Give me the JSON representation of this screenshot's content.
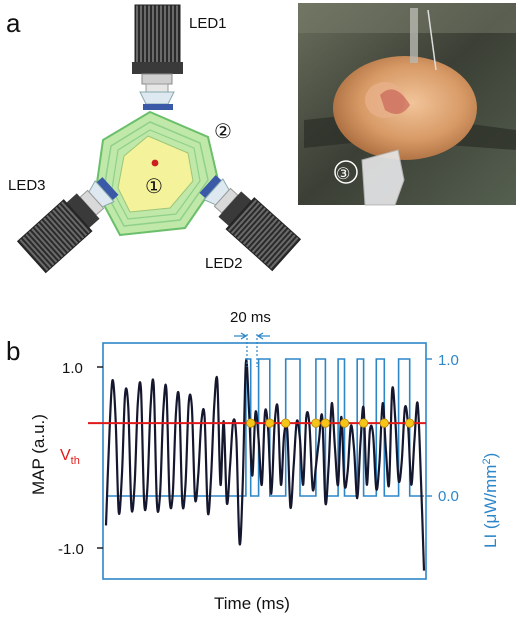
{
  "panel_a": {
    "label": "a",
    "leds": [
      "LED1",
      "LED2",
      "LED3"
    ],
    "markers": [
      "①",
      "②",
      "③"
    ]
  },
  "panel_b": {
    "label": "b",
    "annotation": "20 ms",
    "threshold_label": "V",
    "threshold_sub": "th"
  },
  "chart_data": {
    "type": "line",
    "xlabel": "Time (ms)",
    "ylabel_left": "MAP (a.u.)",
    "ylabel_right": "LI  (μW/mm²)",
    "ylabel_right_base": "LI  (μW/mm",
    "ylabel_right_sup": "2",
    "ylabel_right_close": ")",
    "yticks_left": [
      "1.0",
      "-1.0"
    ],
    "yticks_right": [
      "1.0",
      "0.0"
    ],
    "ylim_left": [
      -1.25,
      1.25
    ],
    "threshold": 0.38,
    "colors": {
      "map": "#15172e",
      "li": "#2d86c8",
      "threshold": "#e01a1a",
      "crossing": "#f5c518"
    },
    "series": [
      {
        "key": "MAP",
        "x": [
          0,
          0.01,
          0.02,
          0.03,
          0.04,
          0.05,
          0.06,
          0.07,
          0.08,
          0.09,
          0.1,
          0.11,
          0.12,
          0.13,
          0.14,
          0.15,
          0.16,
          0.17,
          0.18,
          0.19,
          0.2,
          0.21,
          0.22,
          0.23,
          0.24,
          0.25,
          0.26,
          0.27,
          0.28,
          0.29,
          0.3,
          0.31,
          0.32,
          0.33,
          0.34,
          0.35,
          0.36,
          0.37,
          0.38,
          0.39,
          0.4,
          0.41,
          0.42,
          0.43,
          0.44,
          0.45,
          0.46,
          0.47,
          0.48,
          0.49,
          0.5,
          0.51,
          0.52,
          0.53,
          0.54,
          0.55,
          0.56,
          0.57,
          0.58,
          0.59,
          0.6,
          0.61,
          0.62,
          0.63,
          0.64,
          0.65,
          0.66,
          0.67,
          0.68,
          0.69,
          0.7,
          0.71,
          0.72,
          0.73,
          0.74,
          0.75,
          0.76,
          0.77,
          0.78,
          0.79,
          0.8,
          0.81,
          0.82,
          0.83,
          0.84,
          0.85,
          0.86,
          0.87,
          0.88,
          0.89,
          0.9,
          0.91,
          0.92,
          0.93,
          0.94,
          0.95,
          0.96,
          0.97,
          0.98,
          0.99,
          1.0
        ],
        "values": [
          -0.75,
          0.2,
          0.85,
          0.45,
          -0.6,
          -0.2,
          0.7,
          0.55,
          -0.55,
          -0.3,
          0.6,
          0.75,
          -0.5,
          -0.35,
          0.55,
          0.8,
          -0.5,
          -0.4,
          0.5,
          0.75,
          -0.45,
          -0.4,
          0.5,
          0.65,
          -0.5,
          -0.3,
          0.6,
          0.55,
          -0.45,
          -0.2,
          0.4,
          0.45,
          -0.6,
          -0.25,
          0.55,
          0.85,
          -0.3,
          0.4,
          -0.5,
          -0.1,
          0.4,
          0.2,
          -0.95,
          -0.3,
          1.05,
          0.5,
          -0.2,
          0.5,
          0.2,
          -0.3,
          0.5,
          0.3,
          -0.4,
          0.35,
          0.55,
          -0.3,
          0.25,
          0.3,
          -0.55,
          -0.1,
          0.4,
          0.2,
          -0.3,
          0.45,
          0.35,
          -0.35,
          -0.1,
          0.2,
          0.45,
          -0.5,
          -0.1,
          0.6,
          0.1,
          -0.3,
          0.45,
          -0.3,
          -0.15,
          0.35,
          0.1,
          -0.45,
          0.15,
          0.55,
          -0.3,
          0.3,
          0.25,
          -0.35,
          -0.05,
          0.6,
          0.1,
          -0.3,
          0.75,
          0.4,
          -0.25,
          -0.05,
          0.55,
          0.35,
          -0.3,
          0.2,
          0.6,
          -0.2,
          -1.25
        ]
      },
      {
        "key": "LI",
        "x": [
          0,
          0.44,
          0.44,
          0.455,
          0.455,
          0.48,
          0.48,
          0.515,
          0.515,
          0.565,
          0.565,
          0.61,
          0.61,
          0.66,
          0.66,
          0.69,
          0.69,
          0.73,
          0.73,
          0.75,
          0.75,
          0.79,
          0.79,
          0.81,
          0.81,
          0.85,
          0.85,
          0.875,
          0.875,
          0.92,
          0.92,
          0.955,
          0.955,
          1.0
        ],
        "values": [
          0,
          0,
          1,
          1,
          0,
          0,
          1,
          1,
          0,
          0,
          1,
          1,
          0,
          0,
          1,
          1,
          0,
          0,
          1,
          1,
          0,
          0,
          1,
          1,
          0,
          0,
          1,
          1,
          0,
          0,
          1,
          1,
          0,
          0
        ]
      }
    ],
    "crossings_x": [
      0.455,
      0.515,
      0.565,
      0.66,
      0.69,
      0.75,
      0.81,
      0.875,
      0.955
    ]
  }
}
